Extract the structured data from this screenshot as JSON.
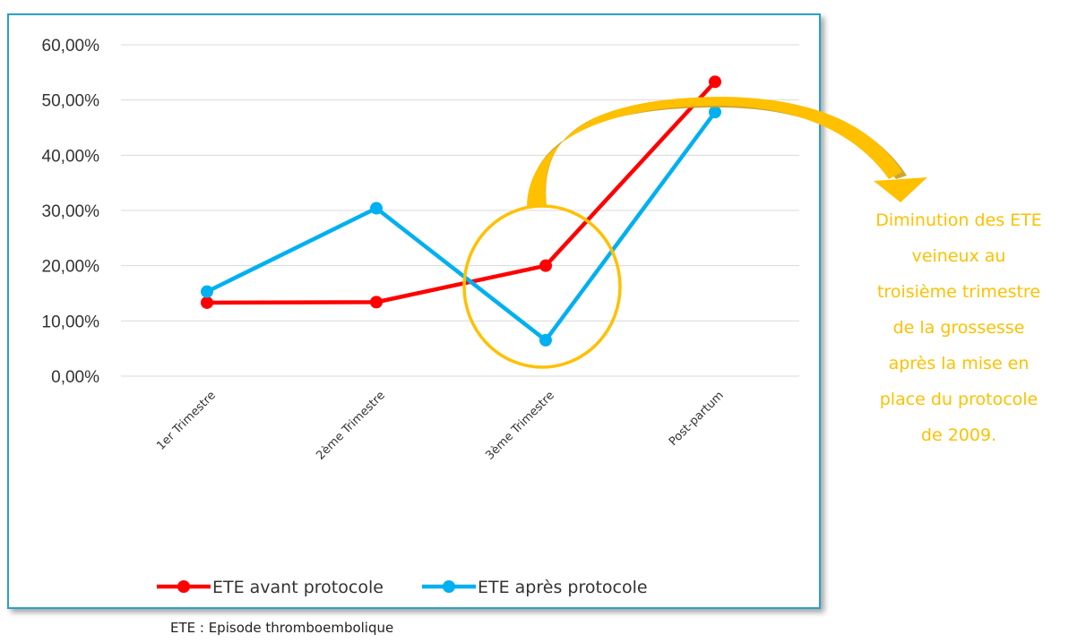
{
  "chart_data": {
    "type": "line",
    "categories": [
      "1er Trimestre",
      "2ème Trimestre",
      "3ème Trimestre",
      "Post-partum"
    ],
    "series": [
      {
        "name": "ETE avant protocole",
        "color": "#ff0000",
        "values": [
          13.3,
          13.4,
          20.0,
          53.3
        ]
      },
      {
        "name": "ETE après protocole",
        "color": "#00b0f0",
        "values": [
          15.3,
          30.4,
          6.5,
          47.8
        ]
      }
    ],
    "ylim": [
      0,
      60
    ],
    "y_ticks": [
      0,
      10,
      20,
      30,
      40,
      50,
      60
    ],
    "y_tick_labels": [
      "0,00%",
      "10,00%",
      "20,00%",
      "30,00%",
      "40,00%",
      "50,00%",
      "60,00%"
    ],
    "grid": true,
    "legend_position": "bottom",
    "highlight": {
      "category_index": 2,
      "color": "#ffc000"
    }
  },
  "annotation": {
    "lines": [
      "Diminution des ETE",
      "veineux au",
      "troisième trimestre",
      "de la grossesse",
      "après la mise en",
      "place du protocole",
      "de 2009."
    ],
    "color": "#ffc000"
  },
  "footnote": "ETE : Episode thromboembolique"
}
